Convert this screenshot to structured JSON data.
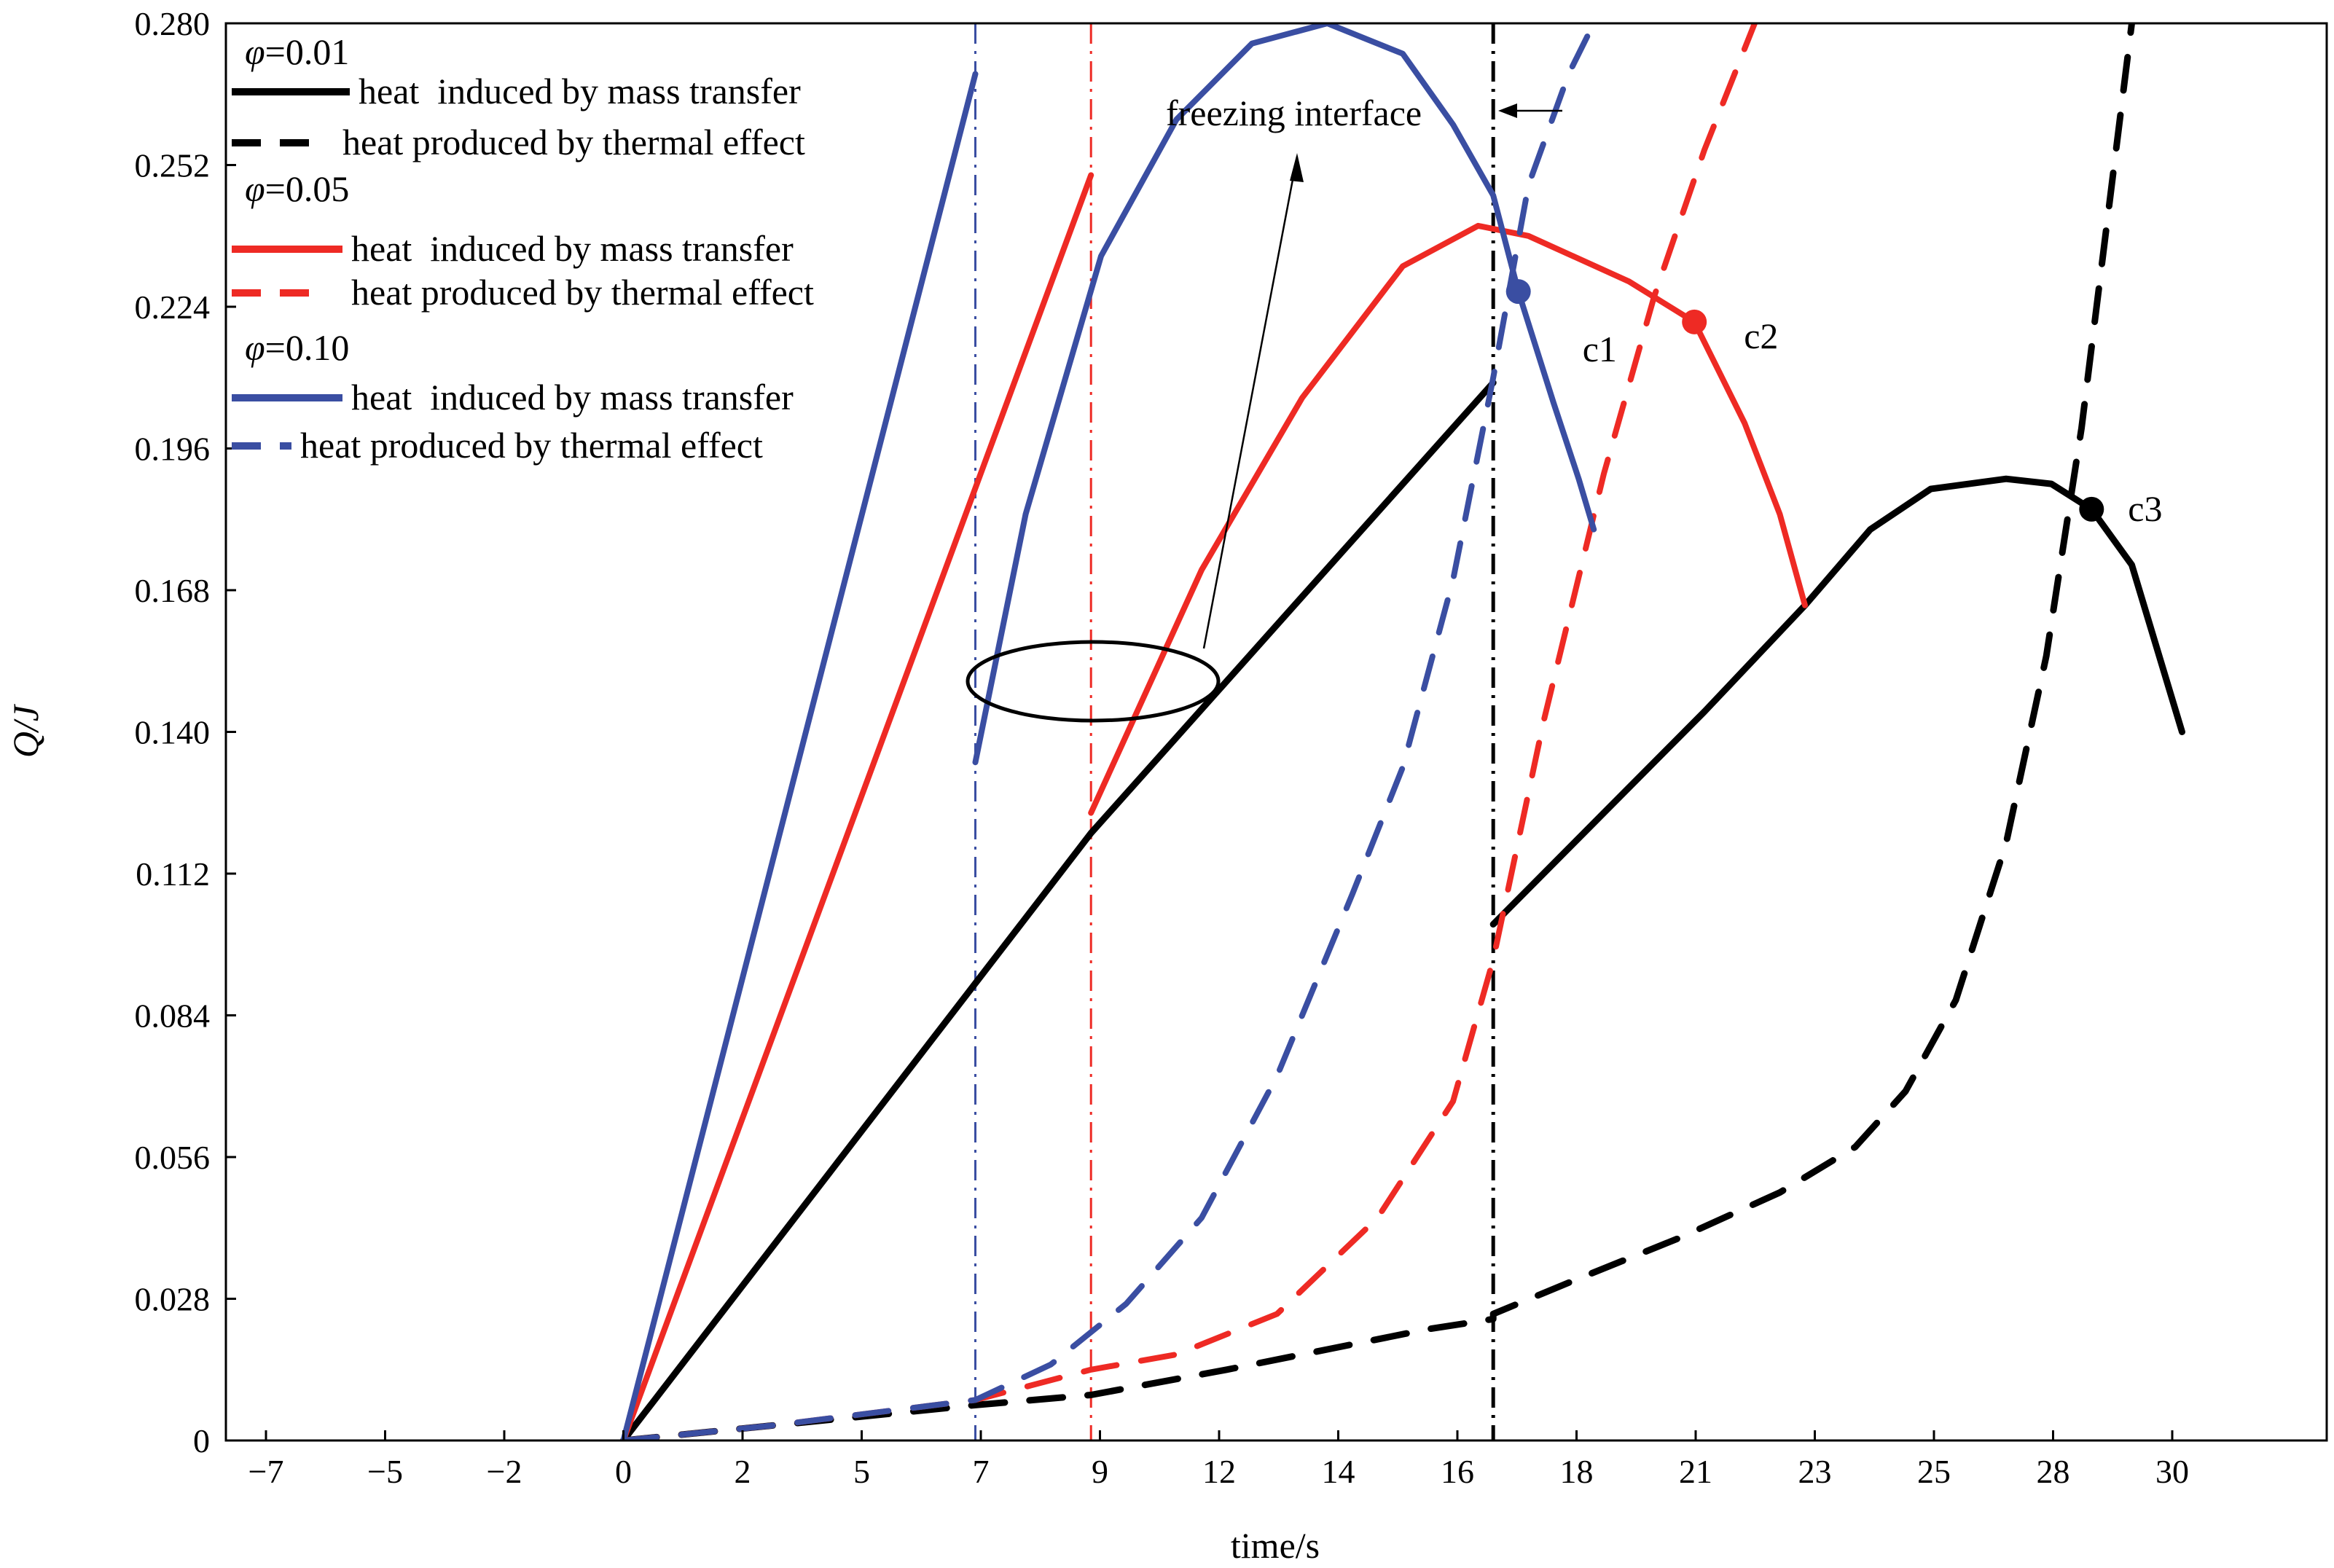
{
  "chart_data": {
    "type": "line",
    "title": "",
    "xlabel": "time/s",
    "ylabel": "Q/J",
    "x_tick_labels": [
      "−7",
      "−5",
      "−2",
      "0",
      "2",
      "5",
      "7",
      "9",
      "12",
      "14",
      "16",
      "18",
      "21",
      "23",
      "25",
      "28",
      "30"
    ],
    "y_tick_labels": [
      "0",
      "0.028",
      "0.056",
      "0.084",
      "0.112",
      "0.140",
      "0.168",
      "0.196",
      "0.224",
      "0.252",
      "0.280"
    ],
    "ylim": [
      0,
      0.28
    ],
    "grid": false,
    "legend": {
      "placement": "top-left",
      "groups": [
        {
          "phi_label": "φ=0.01",
          "color": "#000000",
          "entries": [
            {
              "style": "solid",
              "label": "heat  induced by mass transfer"
            },
            {
              "style": "dashed",
              "label": "heat produced by thermal effect"
            }
          ]
        },
        {
          "phi_label": "φ=0.05",
          "color": "#ee2a24",
          "entries": [
            {
              "style": "solid",
              "label": "heat  induced by mass transfer"
            },
            {
              "style": "dashed",
              "label": "heat produced by thermal effect"
            }
          ]
        },
        {
          "phi_label": "φ=0.10",
          "color": "#3a4ea2",
          "entries": [
            {
              "style": "solid",
              "label": "heat  induced by mass transfer"
            },
            {
              "style": "dashed",
              "label": "heat produced by thermal effect"
            }
          ]
        }
      ]
    },
    "annotation": {
      "text": "freezing interface"
    },
    "series": [
      {
        "phi": 0.01,
        "kind": "mass-transfer",
        "color": "#000000",
        "style": "solid",
        "x": [
          0,
          9.3,
          17.3,
          17.3,
          19.5,
          21.5,
          23.5,
          24.8,
          26.0,
          27.5,
          28.4,
          29.2,
          30.0,
          31.0
        ],
        "y": [
          0,
          0.12,
          0.209,
          0.102,
          0.124,
          0.144,
          0.165,
          0.18,
          0.188,
          0.19,
          0.189,
          0.184,
          0.173,
          0.14
        ]
      },
      {
        "phi": 0.01,
        "kind": "thermal-effect",
        "color": "#000000",
        "style": "dashed",
        "x": [
          0,
          3,
          7,
          9.3,
          12,
          14,
          16,
          17.3,
          17.3,
          19,
          21,
          23,
          24.5,
          25.5,
          26.5,
          27.5,
          28.3,
          29,
          29.5,
          30.0
        ],
        "y": [
          0,
          0.003,
          0.007,
          0.009,
          0.014,
          0.018,
          0.022,
          0.024,
          0.025,
          0.032,
          0.04,
          0.049,
          0.058,
          0.069,
          0.087,
          0.118,
          0.155,
          0.2,
          0.24,
          0.28
        ]
      },
      {
        "phi": 0.05,
        "kind": "mass-transfer",
        "color": "#ee2a24",
        "style": "solid",
        "x": [
          0,
          9.3,
          9.3,
          11.5,
          13.5,
          15.5,
          17.0,
          18.0,
          20.0,
          21.3,
          22.3,
          23.0,
          23.5
        ],
        "y": [
          0,
          0.25,
          0.124,
          0.172,
          0.206,
          0.232,
          0.24,
          0.238,
          0.229,
          0.221,
          0.201,
          0.183,
          0.165
        ]
      },
      {
        "phi": 0.05,
        "kind": "thermal-effect",
        "color": "#ee2a24",
        "style": "dashed",
        "x": [
          0,
          3,
          7,
          9.3,
          11,
          13,
          15,
          16.5,
          17.3,
          18.3,
          19.5,
          20.5,
          21.5,
          22.5
        ],
        "y": [
          0,
          0.003,
          0.008,
          0.014,
          0.017,
          0.025,
          0.044,
          0.067,
          0.095,
          0.142,
          0.191,
          0.226,
          0.255,
          0.28
        ]
      },
      {
        "phi": 0.1,
        "kind": "mass-transfer",
        "color": "#3a4ea2",
        "style": "solid",
        "x": [
          0,
          7.0,
          7.0,
          8.0,
          9.5,
          11.0,
          12.5,
          14.0,
          15.5,
          16.5,
          17.3,
          17.8,
          18.5,
          19.0,
          19.3
        ],
        "y": [
          0,
          0.27,
          0.134,
          0.183,
          0.234,
          0.261,
          0.276,
          0.28,
          0.274,
          0.26,
          0.246,
          0.227,
          0.205,
          0.19,
          0.18
        ]
      },
      {
        "phi": 0.1,
        "kind": "thermal-effect",
        "color": "#3a4ea2",
        "style": "dashed",
        "x": [
          0,
          3,
          7,
          8.5,
          10,
          11.5,
          13,
          14.5,
          15.5,
          16.5,
          17.3,
          18,
          18.8,
          19.3
        ],
        "y": [
          0,
          0.003,
          0.008,
          0.015,
          0.027,
          0.044,
          0.072,
          0.108,
          0.133,
          0.17,
          0.21,
          0.248,
          0.27,
          0.28
        ]
      }
    ],
    "vertical_lines": [
      {
        "x": 7.0,
        "color": "#3a4ea2",
        "style": "dashdot"
      },
      {
        "x": 9.3,
        "color": "#ee2a24",
        "style": "dashdot"
      },
      {
        "x": 17.3,
        "color": "#000000",
        "style": "dashdot"
      }
    ],
    "intersection_points": [
      {
        "label": "c1",
        "x": 17.8,
        "y": 0.227,
        "color": "#3a4ea2"
      },
      {
        "label": "c2",
        "x": 21.3,
        "y": 0.221,
        "color": "#ee2a24"
      },
      {
        "label": "c3",
        "x": 29.2,
        "y": 0.184,
        "color": "#000000"
      }
    ]
  }
}
